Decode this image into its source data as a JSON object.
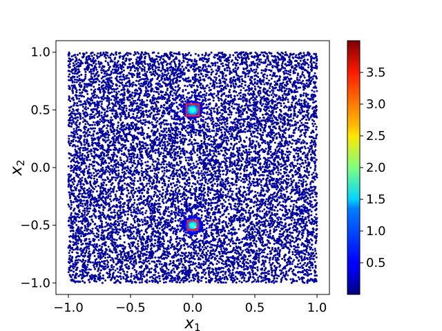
{
  "chart_data": {
    "type": "scatter",
    "title": "",
    "xlabel": "x",
    "xlabel_sub": "1",
    "ylabel": "x",
    "ylabel_sub": "2",
    "xlim": [
      -1.1,
      1.1
    ],
    "ylim": [
      -1.1,
      1.1
    ],
    "x_ticks": [
      -1.0,
      -0.5,
      0.0,
      0.5,
      1.0
    ],
    "x_tick_labels": [
      "−1.0",
      "−0.5",
      "0.0",
      "0.5",
      "1.0"
    ],
    "y_ticks": [
      -1.0,
      -0.5,
      0.0,
      0.5,
      1.0
    ],
    "y_tick_labels": [
      "−1.0",
      "−0.5",
      "0.0",
      "0.5",
      "1.0"
    ],
    "grid": false,
    "point_domain": {
      "x": [
        -1.0,
        1.0
      ],
      "y": [
        -1.0,
        1.0
      ]
    },
    "point_count": 12000,
    "colormap": "jet",
    "colorbar": {
      "range": [
        0.0,
        4.0
      ],
      "ticks": [
        0.5,
        1.0,
        1.5,
        2.0,
        2.5,
        3.0,
        3.5
      ],
      "tick_labels": [
        "0.5",
        "1.0",
        "1.5",
        "2.0",
        "2.5",
        "3.0",
        "3.5"
      ]
    },
    "background_value": 0.1,
    "hotspots": [
      {
        "x": 0.0,
        "y": 0.5,
        "peak_value": 1.4
      },
      {
        "x": 0.0,
        "y": -0.5,
        "peak_value": 1.4
      }
    ],
    "highlight_boxes": [
      {
        "x": [
          -0.05,
          0.05
        ],
        "y": [
          0.45,
          0.55
        ],
        "color": "#e8232a"
      },
      {
        "x": [
          -0.04,
          0.04
        ],
        "y": [
          -0.54,
          -0.46
        ],
        "color": "#e8232a"
      }
    ]
  }
}
